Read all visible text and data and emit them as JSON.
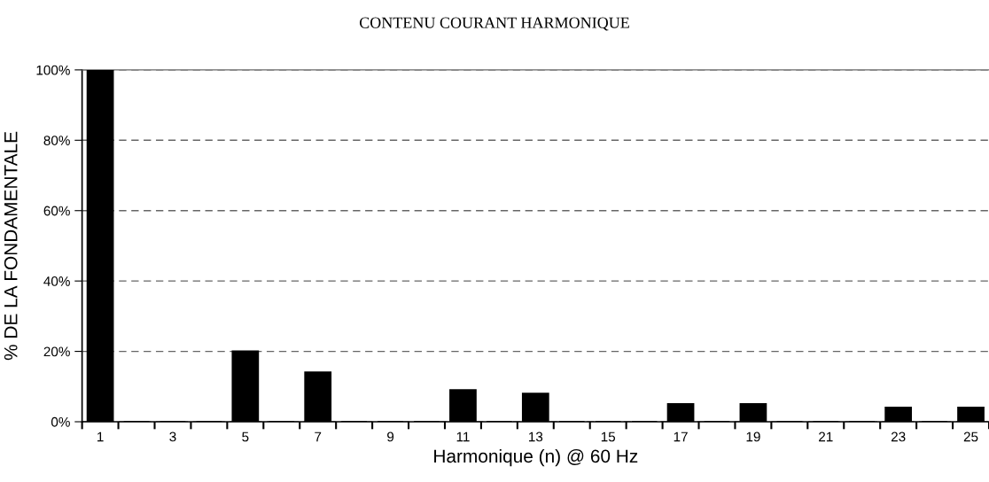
{
  "chart_data": {
    "type": "bar",
    "title": "CONTENU COURANT HARMONIQUE",
    "xlabel": "Harmonique (n) @ 60 Hz",
    "ylabel": "% DE LA FONDAMENTALE",
    "categories": [
      "1",
      null,
      "3",
      null,
      "5",
      null,
      "7",
      null,
      "9",
      null,
      "11",
      null,
      "13",
      null,
      "15",
      null,
      "17",
      null,
      "19",
      null,
      "21",
      null,
      "23",
      null,
      "25"
    ],
    "values": [
      100,
      0,
      0,
      0,
      20,
      0,
      14,
      0,
      0,
      0,
      9,
      0,
      8,
      0,
      0,
      0,
      5,
      0,
      5,
      0,
      0,
      0,
      4,
      0,
      4
    ],
    "color": "#000000",
    "ylim": [
      0,
      100
    ],
    "yticks": [
      {
        "value": 0,
        "label": "0%"
      },
      {
        "value": 20,
        "label": "20%"
      },
      {
        "value": 40,
        "label": "40%"
      },
      {
        "value": 60,
        "label": "60%"
      },
      {
        "value": 80,
        "label": "80%"
      },
      {
        "value": 100,
        "label": "100%"
      }
    ],
    "grid": "y",
    "legend": false
  }
}
